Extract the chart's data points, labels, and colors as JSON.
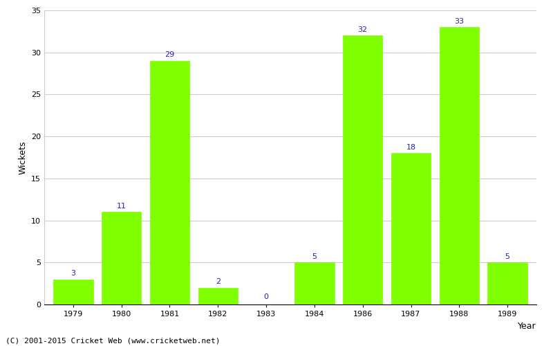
{
  "years": [
    "1979",
    "1980",
    "1981",
    "1982",
    "1983",
    "1984",
    "1986",
    "1987",
    "1988",
    "1989"
  ],
  "wickets": [
    3,
    11,
    29,
    2,
    0,
    5,
    32,
    18,
    33,
    5
  ],
  "bar_color": "#7fff00",
  "bar_edge_color": "#7fff00",
  "label_color": "#2222aa",
  "xlabel": "Year",
  "ylabel": "Wickets",
  "ylim": [
    0,
    35
  ],
  "yticks": [
    0,
    5,
    10,
    15,
    20,
    25,
    30,
    35
  ],
  "background_color": "#ffffff",
  "grid_color": "#cccccc",
  "footer": "(C) 2001-2015 Cricket Web (www.cricketweb.net)",
  "label_fontsize": 8,
  "axis_label_fontsize": 9,
  "footer_fontsize": 8,
  "bar_width": 0.82
}
